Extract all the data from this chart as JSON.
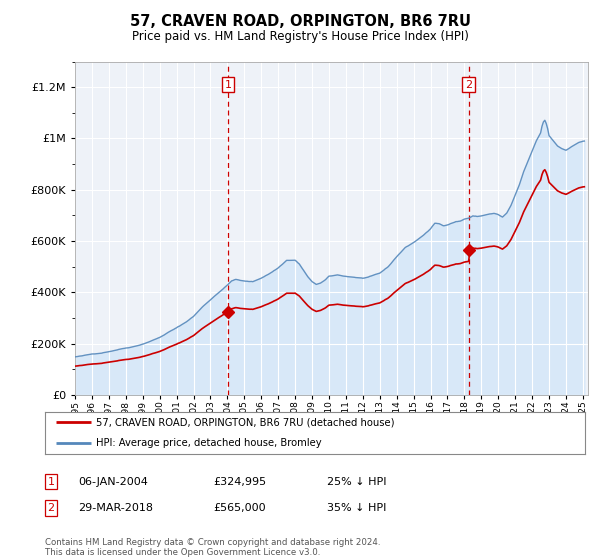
{
  "title": "57, CRAVEN ROAD, ORPINGTON, BR6 7RU",
  "subtitle": "Price paid vs. HM Land Registry's House Price Index (HPI)",
  "legend_line1": "57, CRAVEN ROAD, ORPINGTON, BR6 7RU (detached house)",
  "legend_line2": "HPI: Average price, detached house, Bromley",
  "footer": "Contains HM Land Registry data © Crown copyright and database right 2024.\nThis data is licensed under the Open Government Licence v3.0.",
  "annotation1_label": "1",
  "annotation1_date": "06-JAN-2004",
  "annotation1_price": "£324,995",
  "annotation1_hpi": "25% ↓ HPI",
  "annotation1_year": 2004.03,
  "annotation2_label": "2",
  "annotation2_date": "29-MAR-2018",
  "annotation2_price": "£565,000",
  "annotation2_hpi": "35% ↓ HPI",
  "annotation2_year": 2018.25,
  "price_paid_color": "#cc0000",
  "hpi_color": "#5588bb",
  "hpi_fill_color": "#d8e8f8",
  "vline_color": "#cc0000",
  "box_color": "#cc0000",
  "ylim": [
    0,
    1300000
  ],
  "xlim_min": 1995.0,
  "xlim_max": 2025.3,
  "plot_bg": "#eef2f8"
}
